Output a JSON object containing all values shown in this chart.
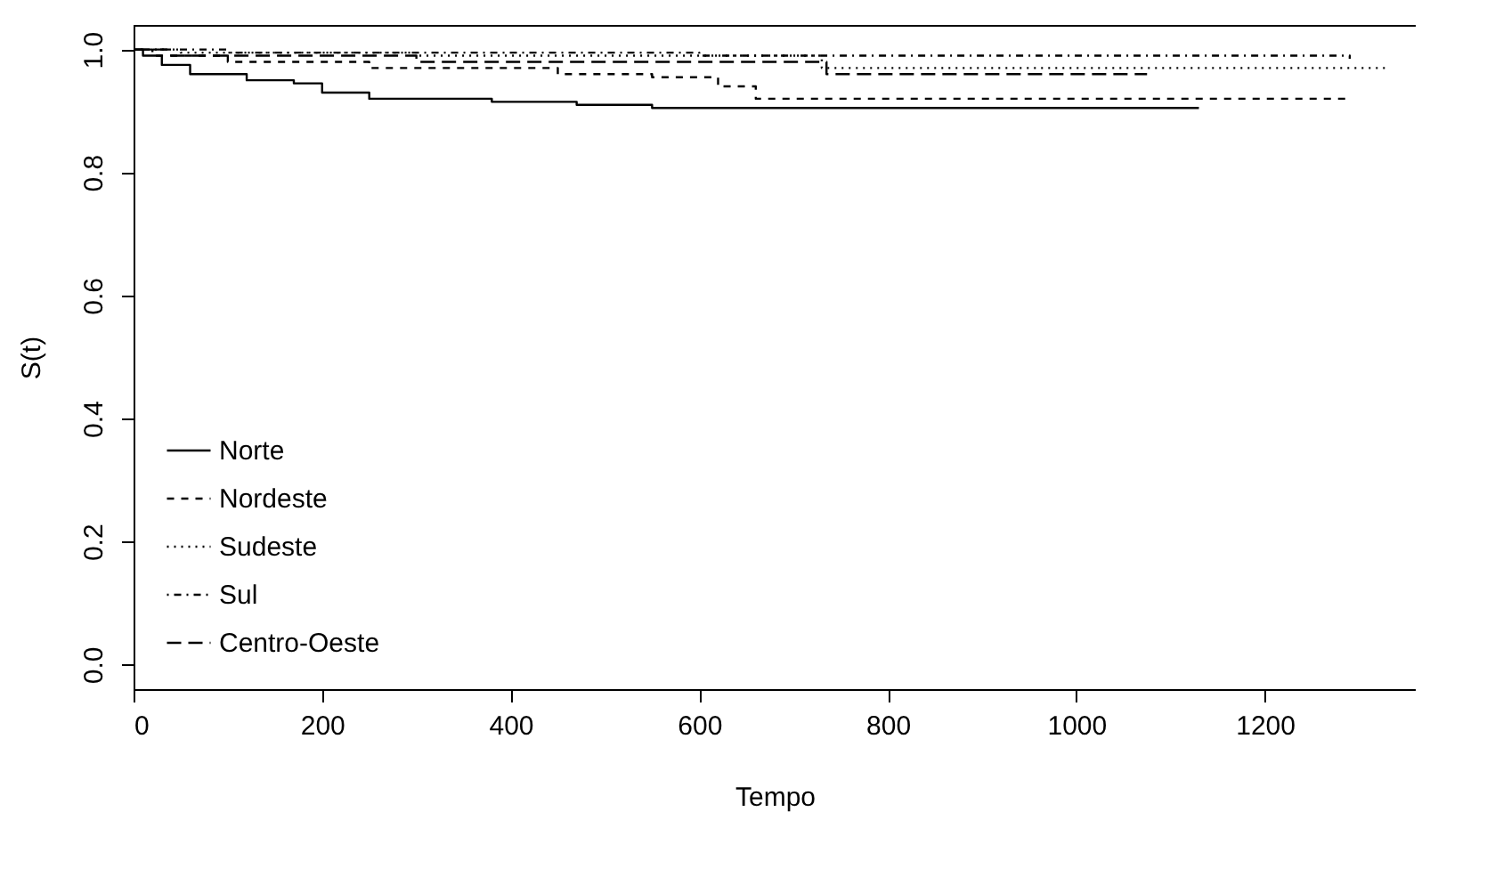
{
  "chart_data": {
    "type": "step",
    "xlabel": "Tempo",
    "ylabel": "S(t)",
    "xlim": [
      0,
      1360
    ],
    "ylim": [
      -0.04,
      1.04
    ],
    "xticks": [
      0,
      200,
      400,
      600,
      800,
      1000,
      1200
    ],
    "yticks": [
      {
        "value": 0,
        "label": "0.0"
      },
      0.2,
      0.4,
      0.6,
      0.8,
      {
        "value": 1,
        "label": "1.0"
      }
    ],
    "grid": false,
    "legend": "bottom left",
    "series": [
      {
        "name": "Norte",
        "color": "#000000",
        "line_style": "solid",
        "x": [
          0,
          10,
          30,
          60,
          120,
          170,
          200,
          250,
          380,
          470,
          550,
          1130
        ],
        "values": [
          1,
          0.99,
          0.975,
          0.96,
          0.95,
          0.945,
          0.93,
          0.92,
          0.915,
          0.91,
          0.905,
          0.905
        ]
      },
      {
        "name": "Nordeste",
        "color": "#000000",
        "line_style": "dashed",
        "x": [
          0,
          20,
          100,
          250,
          450,
          550,
          620,
          660,
          1290
        ],
        "values": [
          1,
          0.99,
          0.98,
          0.97,
          0.96,
          0.955,
          0.94,
          0.92,
          0.92
        ]
      },
      {
        "name": "Sudeste",
        "color": "#000000",
        "line_style": "dotted",
        "x": [
          0,
          50,
          300,
          730,
          1330
        ],
        "values": [
          1,
          0.995,
          0.99,
          0.97,
          0.97
        ]
      },
      {
        "name": "Sul",
        "color": "#000000",
        "line_style": "dashdot",
        "x": [
          0,
          100,
          600,
          1290
        ],
        "values": [
          1,
          0.995,
          0.99,
          0.985
        ]
      },
      {
        "name": "Centro-Oeste",
        "color": "#000000",
        "line_style": "longdash",
        "x": [
          0,
          40,
          300,
          735,
          1075
        ],
        "values": [
          1,
          0.99,
          0.98,
          0.96,
          0.96
        ]
      }
    ]
  }
}
